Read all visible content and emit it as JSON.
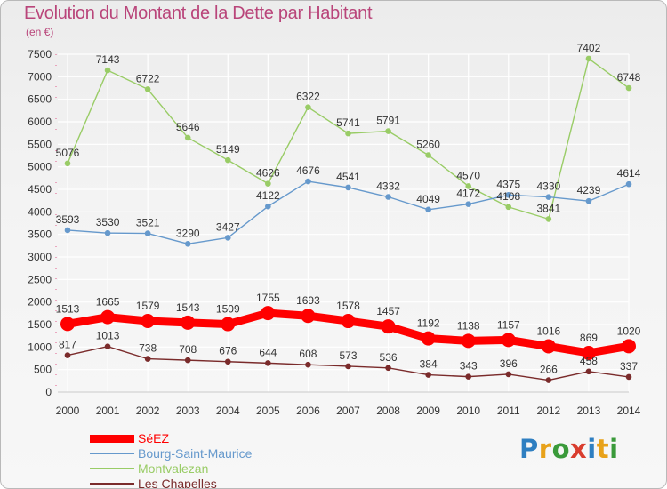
{
  "header": {
    "title": "Evolution du Montant de la Dette par Habitant",
    "unit": "(en €)"
  },
  "logo": {
    "text": "Proxiti",
    "letter_colors": [
      "#2f7fc1",
      "#e8a21a",
      "#3a9a3a",
      "#d93d2e",
      "#2f7fc1",
      "#e8a21a",
      "#3a9a3a"
    ]
  },
  "chart_data": {
    "type": "line",
    "title": "Evolution du Montant de la Dette par Habitant",
    "ylabel": "(en €)",
    "x": [
      "2000",
      "2001",
      "2002",
      "2003",
      "2004",
      "2005",
      "2006",
      "2007",
      "2008",
      "2009",
      "2010",
      "2011",
      "2012",
      "2013",
      "2014"
    ],
    "ylim": [
      0,
      7500
    ],
    "yticks": [
      0,
      500,
      1000,
      1500,
      2000,
      2500,
      3000,
      3500,
      4000,
      4500,
      5000,
      5500,
      6000,
      6500,
      7000,
      7500
    ],
    "grid": true,
    "legend_position": "bottom-left",
    "series": [
      {
        "name": "SéEZ",
        "color": "#ff0000",
        "values": [
          1513,
          1665,
          1579,
          1543,
          1509,
          1755,
          1693,
          1578,
          1457,
          1192,
          1138,
          1157,
          1016,
          869,
          1020
        ]
      },
      {
        "name": "Bourg-Saint-Maurice",
        "color": "#6699cc",
        "values": [
          3593,
          3530,
          3521,
          3290,
          3427,
          4122,
          4676,
          4541,
          4332,
          4049,
          4172,
          4375,
          4330,
          4239,
          4614
        ]
      },
      {
        "name": "Montvalezan",
        "color": "#99cc66",
        "values": [
          5076,
          7143,
          6722,
          5646,
          5149,
          4626,
          6322,
          5741,
          5791,
          5260,
          4570,
          4108,
          3841,
          7402,
          6748
        ]
      },
      {
        "name": "Les Chapelles",
        "color": "#7a2b2b",
        "values": [
          817,
          1013,
          738,
          708,
          676,
          644,
          608,
          573,
          536,
          384,
          343,
          396,
          266,
          458,
          337
        ]
      }
    ]
  }
}
